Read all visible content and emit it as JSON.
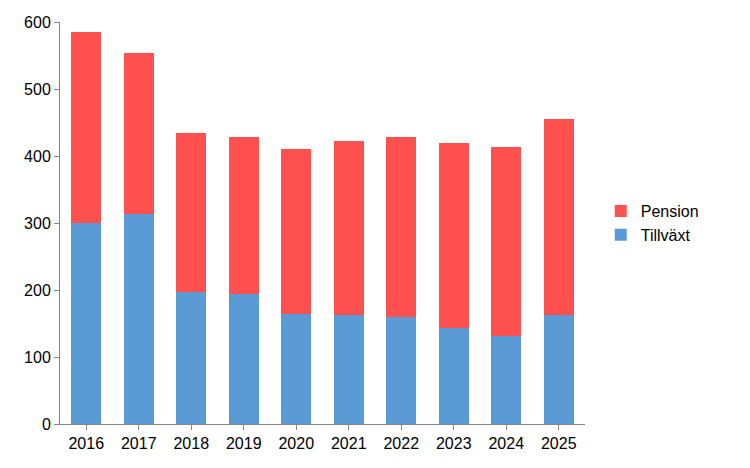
{
  "chart_data": {
    "type": "bar",
    "stacked": true,
    "grid": false,
    "legend": "right",
    "categories": [
      "2016",
      "2017",
      "2018",
      "2019",
      "2020",
      "2021",
      "2022",
      "2023",
      "2024",
      "2025"
    ],
    "series": [
      {
        "name": "Tillväxt",
        "color": "#5b9bd5",
        "values": [
          300,
          313,
          197,
          194,
          164,
          162,
          160,
          143,
          132,
          162
        ]
      },
      {
        "name": "Pension",
        "color": "#ff5050",
        "values": [
          285,
          240,
          238,
          235,
          246,
          261,
          268,
          276,
          282,
          293
        ]
      }
    ],
    "ylim": [
      0,
      600
    ],
    "yticks": [
      0,
      100,
      200,
      300,
      400,
      500,
      600
    ]
  }
}
